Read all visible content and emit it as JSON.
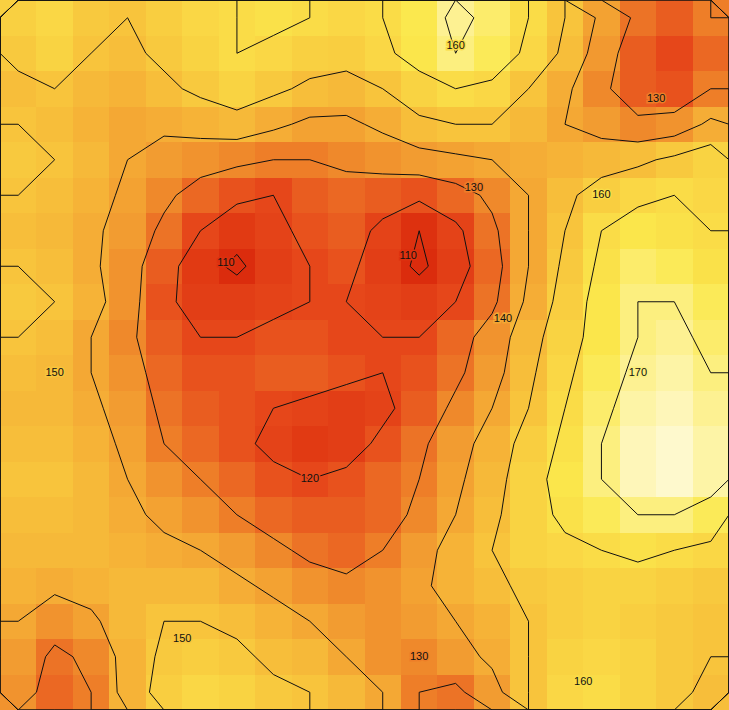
{
  "chart_data": {
    "type": "contour",
    "tick_labels": false,
    "zlim": [
      100,
      180
    ],
    "contour_levels": [
      110,
      120,
      130,
      140,
      150,
      160,
      170
    ],
    "cells": [
      [
        155,
        158,
        152,
        150,
        154,
        158,
        160,
        162,
        160,
        158,
        160,
        165,
        172,
        168,
        160,
        150,
        138,
        128,
        124,
        130
      ],
      [
        152,
        156,
        150,
        148,
        152,
        156,
        160,
        158,
        155,
        154,
        158,
        164,
        170,
        166,
        158,
        148,
        135,
        124,
        120,
        126
      ],
      [
        148,
        150,
        146,
        144,
        148,
        152,
        156,
        152,
        148,
        146,
        150,
        156,
        160,
        158,
        150,
        142,
        132,
        124,
        122,
        130
      ],
      [
        150,
        148,
        144,
        140,
        142,
        144,
        146,
        142,
        138,
        138,
        142,
        148,
        150,
        150,
        146,
        140,
        136,
        132,
        134,
        142
      ],
      [
        152,
        150,
        146,
        140,
        136,
        134,
        132,
        130,
        130,
        132,
        134,
        136,
        138,
        140,
        142,
        144,
        146,
        148,
        152,
        156
      ],
      [
        150,
        148,
        144,
        138,
        132,
        126,
        122,
        120,
        124,
        126,
        124,
        122,
        126,
        132,
        140,
        148,
        154,
        158,
        160,
        158
      ],
      [
        148,
        146,
        142,
        136,
        128,
        120,
        114,
        118,
        122,
        124,
        118,
        110,
        118,
        128,
        140,
        150,
        160,
        164,
        162,
        160
      ],
      [
        150,
        148,
        142,
        134,
        124,
        114,
        108,
        116,
        120,
        122,
        116,
        108,
        116,
        126,
        140,
        152,
        162,
        168,
        166,
        162
      ],
      [
        152,
        150,
        144,
        134,
        122,
        116,
        116,
        118,
        120,
        120,
        118,
        116,
        120,
        128,
        142,
        154,
        164,
        170,
        170,
        166
      ],
      [
        150,
        148,
        140,
        132,
        124,
        120,
        120,
        122,
        122,
        120,
        120,
        120,
        126,
        134,
        146,
        156,
        164,
        170,
        172,
        168
      ],
      [
        148,
        146,
        140,
        134,
        126,
        122,
        122,
        124,
        124,
        122,
        120,
        122,
        128,
        136,
        148,
        158,
        166,
        172,
        174,
        170
      ],
      [
        146,
        146,
        142,
        136,
        128,
        124,
        122,
        120,
        118,
        116,
        118,
        124,
        132,
        140,
        150,
        160,
        168,
        174,
        176,
        172
      ],
      [
        148,
        148,
        144,
        138,
        130,
        126,
        122,
        118,
        114,
        116,
        122,
        128,
        136,
        144,
        154,
        162,
        170,
        176,
        178,
        174
      ],
      [
        150,
        150,
        146,
        140,
        134,
        130,
        126,
        122,
        120,
        122,
        126,
        130,
        138,
        146,
        156,
        164,
        170,
        176,
        178,
        174
      ],
      [
        148,
        148,
        146,
        142,
        138,
        134,
        130,
        126,
        124,
        124,
        126,
        132,
        140,
        148,
        156,
        162,
        166,
        170,
        170,
        166
      ],
      [
        146,
        146,
        146,
        144,
        142,
        140,
        136,
        132,
        128,
        126,
        130,
        136,
        144,
        150,
        156,
        158,
        160,
        162,
        160,
        158
      ],
      [
        144,
        142,
        144,
        146,
        146,
        146,
        142,
        138,
        134,
        132,
        134,
        138,
        144,
        148,
        152,
        154,
        156,
        156,
        154,
        152
      ],
      [
        140,
        134,
        138,
        146,
        150,
        150,
        148,
        144,
        140,
        136,
        134,
        136,
        140,
        144,
        150,
        154,
        156,
        154,
        152,
        150
      ],
      [
        136,
        128,
        132,
        144,
        152,
        154,
        152,
        148,
        146,
        140,
        134,
        132,
        136,
        142,
        150,
        156,
        158,
        156,
        152,
        150
      ],
      [
        134,
        126,
        130,
        144,
        154,
        158,
        156,
        152,
        150,
        146,
        140,
        130,
        128,
        136,
        150,
        158,
        160,
        156,
        152,
        148
      ]
    ],
    "contour_labels": [
      {
        "value": 160,
        "x": 12.5,
        "y": 1.3
      },
      {
        "value": 130,
        "x": 18.0,
        "y": 2.8
      },
      {
        "value": 130,
        "x": 13.0,
        "y": 5.3
      },
      {
        "value": 160,
        "x": 16.5,
        "y": 5.5
      },
      {
        "value": 110,
        "x": 6.2,
        "y": 7.4
      },
      {
        "value": 110,
        "x": 11.2,
        "y": 7.2
      },
      {
        "value": 140,
        "x": 13.8,
        "y": 9.0
      },
      {
        "value": 150,
        "x": 1.5,
        "y": 10.5
      },
      {
        "value": 170,
        "x": 17.5,
        "y": 10.5
      },
      {
        "value": 120,
        "x": 8.5,
        "y": 13.5
      },
      {
        "value": 150,
        "x": 5.0,
        "y": 18.0
      },
      {
        "value": 130,
        "x": 11.5,
        "y": 18.5
      },
      {
        "value": 160,
        "x": 16.0,
        "y": 19.2
      }
    ]
  }
}
